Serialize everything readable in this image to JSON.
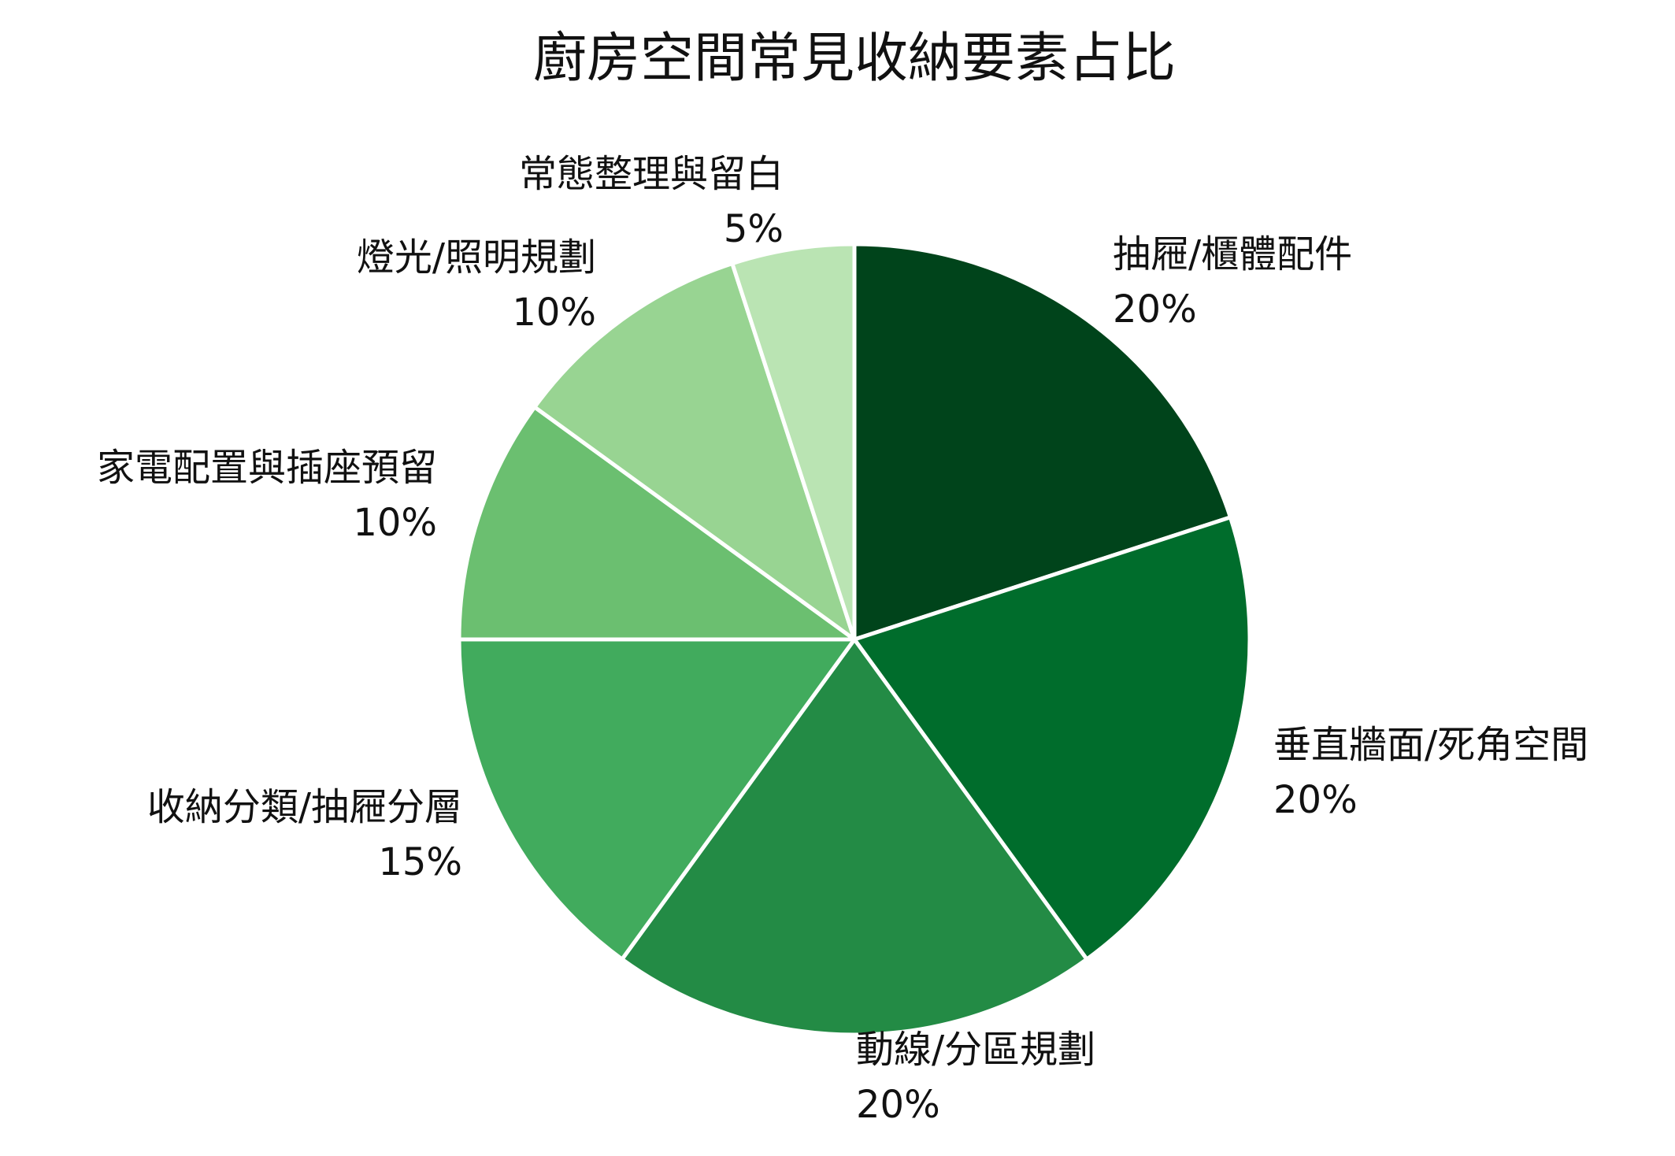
{
  "chart_data": {
    "type": "pie",
    "title": "廚房空間常見收納要素占比",
    "start_angle_deg": 90,
    "direction": "clockwise",
    "slice_border_color": "#ffffff",
    "slices": [
      {
        "label": "抽屜/櫃體配件",
        "value": 20,
        "value_label": "20%",
        "color": "#00441b"
      },
      {
        "label": "垂直牆面/死角空間",
        "value": 20,
        "value_label": "20%",
        "color": "#006d2c"
      },
      {
        "label": "動線/分區規劃",
        "value": 20,
        "value_label": "20%",
        "color": "#238b45"
      },
      {
        "label": "收納分類/抽屜分層",
        "value": 15,
        "value_label": "15%",
        "color": "#41ab5d"
      },
      {
        "label": "家電配置與插座預留",
        "value": 10,
        "value_label": "10%",
        "color": "#6bbf70"
      },
      {
        "label": "燈光/照明規劃",
        "value": 10,
        "value_label": "10%",
        "color": "#98d492"
      },
      {
        "label": "常態整理與留白",
        "value": 5,
        "value_label": "5%",
        "color": "#bae4b3"
      }
    ]
  }
}
